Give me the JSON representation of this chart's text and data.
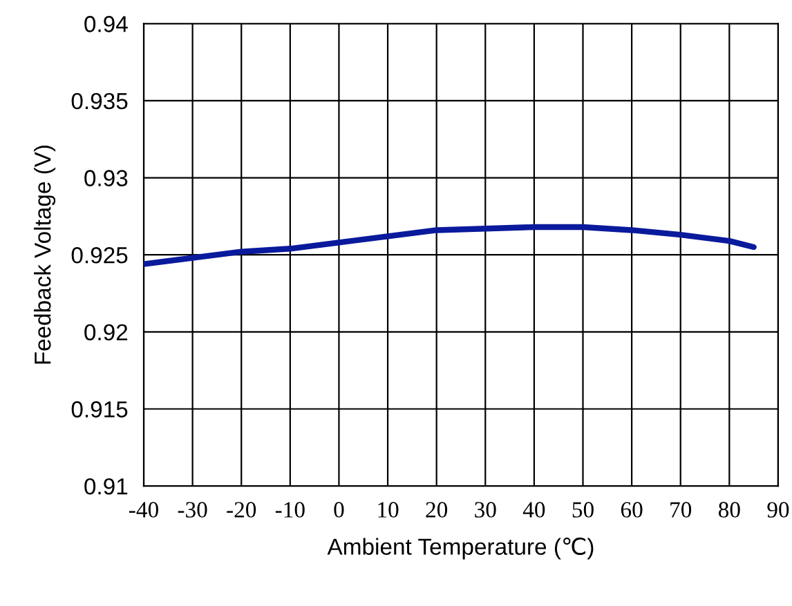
{
  "chart_data": {
    "type": "line",
    "xlabel": "Ambient Temperature (℃)",
    "ylabel": "Feedback Voltage (V)",
    "series": [
      {
        "color": "#0a1a9c",
        "x": [
          -40,
          -30,
          -20,
          -10,
          0,
          10,
          20,
          30,
          40,
          45,
          50,
          60,
          70,
          80,
          85
        ],
        "values": [
          0.9244,
          0.9248,
          0.9252,
          0.9254,
          0.9258,
          0.9262,
          0.9266,
          0.9267,
          0.9268,
          0.9268,
          0.9268,
          0.9266,
          0.9263,
          0.9259,
          0.9255
        ]
      }
    ],
    "xlim": [
      -40,
      90
    ],
    "xticks": [
      -40,
      -30,
      -20,
      -10,
      0,
      10,
      20,
      30,
      40,
      50,
      60,
      70,
      80,
      90
    ],
    "ylim": [
      0.91,
      0.94
    ],
    "yticks": [
      0.91,
      0.915,
      0.92,
      0.925,
      0.93,
      0.935,
      0.94
    ],
    "grid": true,
    "marker": "none",
    "line_style": "solid"
  }
}
